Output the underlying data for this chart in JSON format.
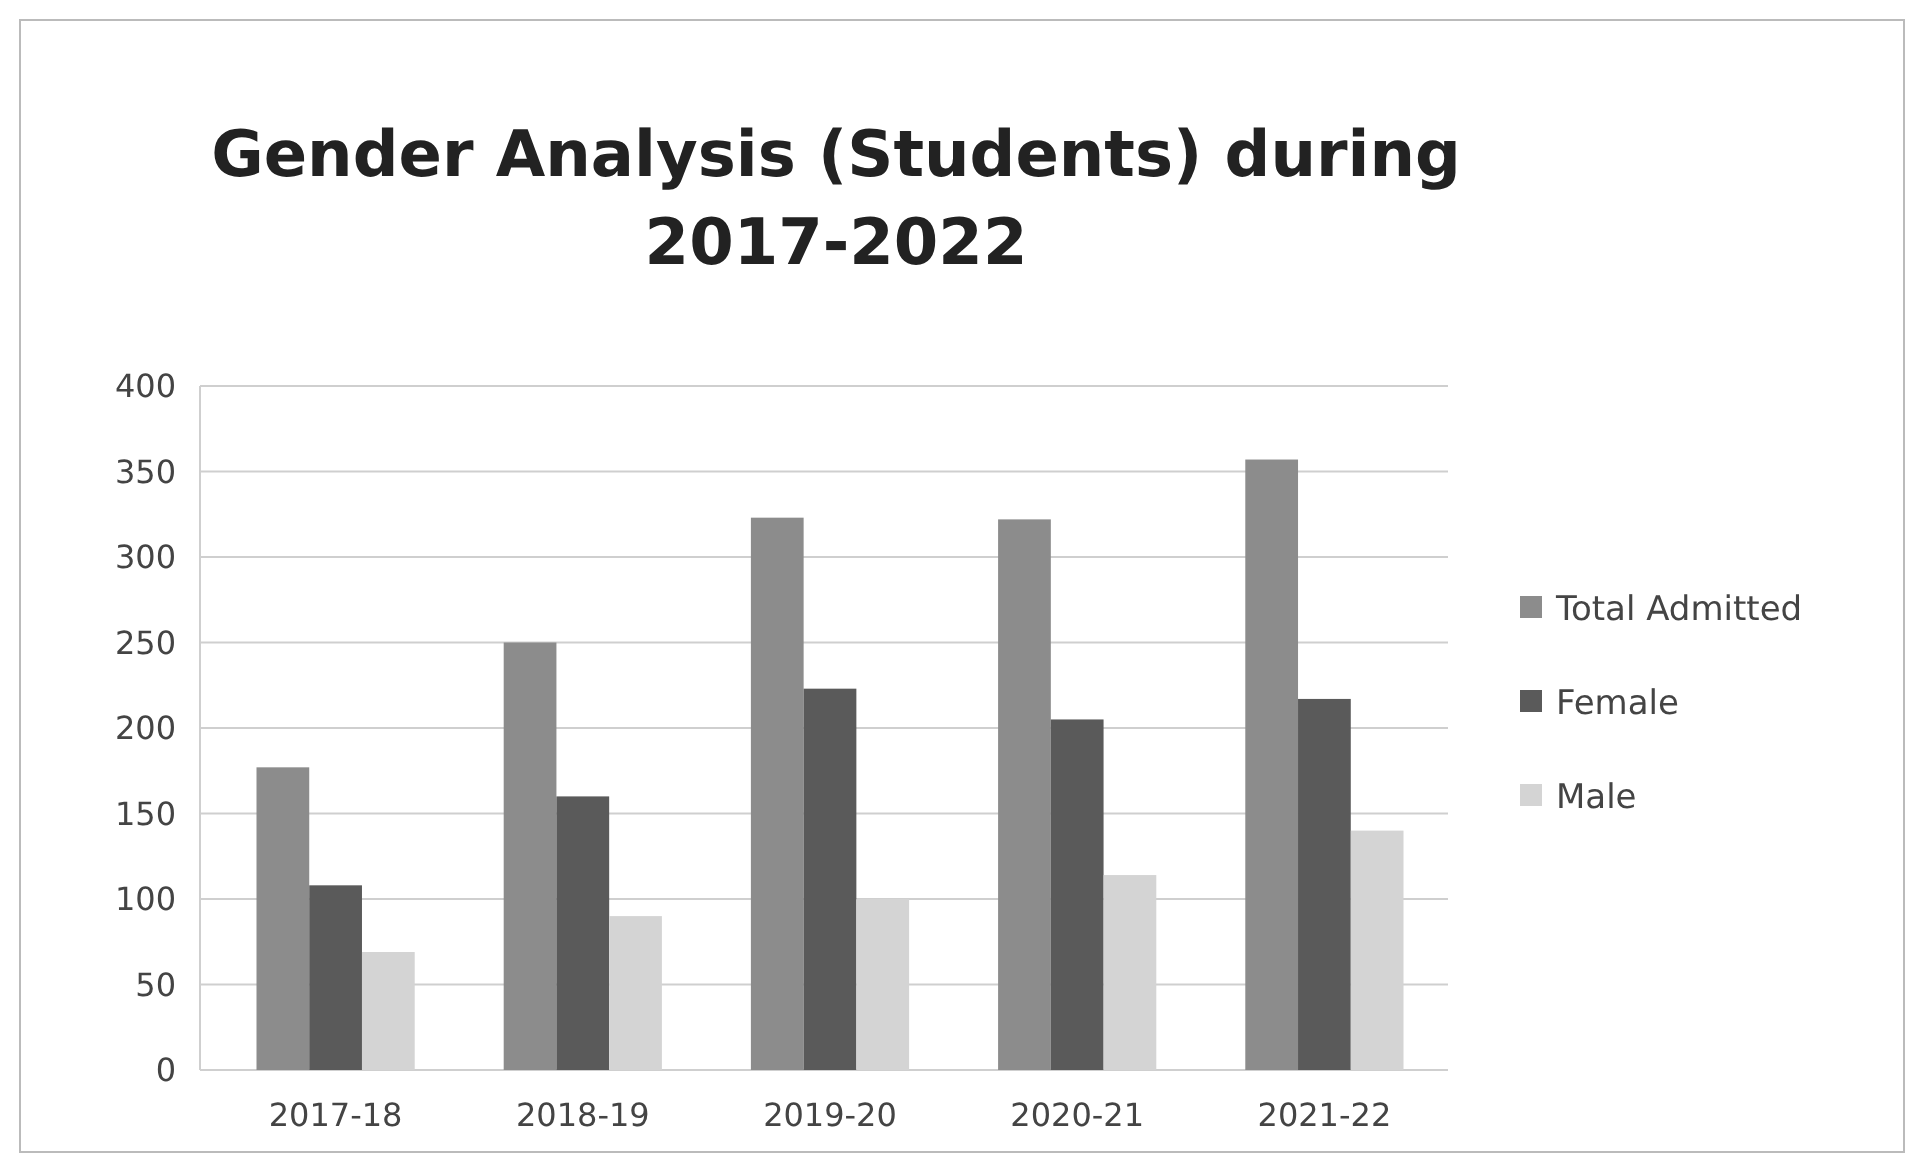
{
  "chart_data": {
    "type": "bar",
    "title": "Gender Analysis (Students) during 2017-2022",
    "categories": [
      "2017-18",
      "2018-19",
      "2019-20",
      "2020-21",
      "2021-22"
    ],
    "series": [
      {
        "name": "Total Admitted",
        "color": "#8c8c8c",
        "values": [
          177,
          250,
          323,
          322,
          357
        ]
      },
      {
        "name": "Female",
        "color": "#5a5a5a",
        "values": [
          108,
          160,
          223,
          205,
          217
        ]
      },
      {
        "name": "Male",
        "color": "#d4d4d4",
        "values": [
          69,
          90,
          100,
          114,
          140
        ]
      }
    ],
    "ylim": [
      0,
      400
    ],
    "yticks": [
      0,
      50,
      100,
      150,
      200,
      250,
      300,
      350,
      400
    ],
    "grid": "y",
    "legend": "right"
  }
}
